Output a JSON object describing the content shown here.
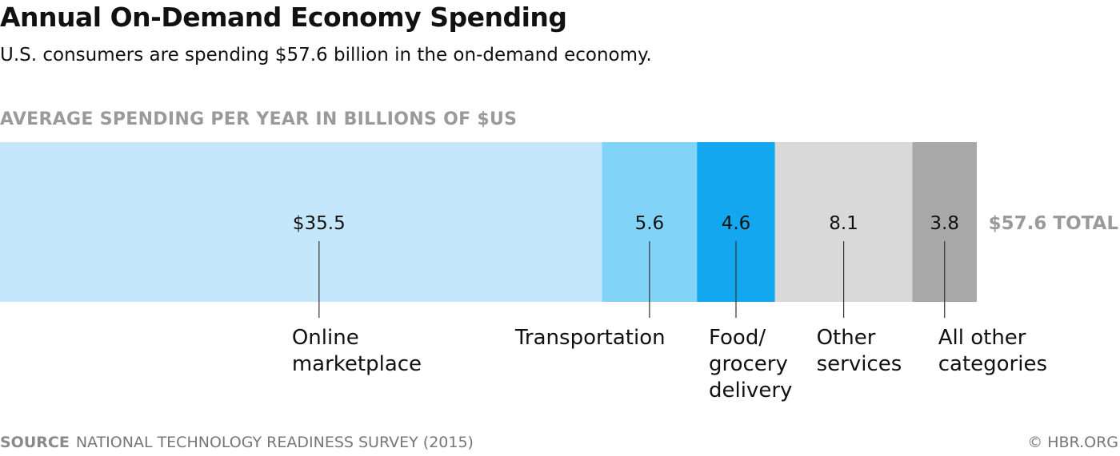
{
  "title": "Annual On-Demand Economy Spending",
  "subtitle": "U.S. consumers are spending $57.6 billion in the on-demand economy.",
  "axis_label": "AVERAGE SPENDING PER YEAR IN BILLIONS OF $US",
  "footer": {
    "source_label": "SOURCE",
    "source_text": "NATIONAL TECHNOLOGY READINESS SURVEY (2015)",
    "credit": "© HBR.ORG"
  },
  "chart_data": {
    "type": "bar",
    "orientation": "horizontal-stacked",
    "title": "Annual On-Demand Economy Spending",
    "subtitle": "U.S. consumers are spending $57.6 billion in the on-demand economy.",
    "ylabel": "AVERAGE SPENDING PER YEAR IN BILLIONS OF $US",
    "total": 57.6,
    "total_label": "$57.6 TOTAL",
    "segments": [
      {
        "category": [
          "Online",
          "marketplace"
        ],
        "value": 35.5,
        "value_label": "$35.5",
        "color": "#c4e7fb",
        "text_color": "#111111"
      },
      {
        "category": [
          "Transportation"
        ],
        "value": 5.6,
        "value_label": "5.6",
        "color": "#82d3f8",
        "text_color": "#111111"
      },
      {
        "category": [
          "Food/",
          "grocery",
          "delivery"
        ],
        "value": 4.6,
        "value_label": "4.6",
        "color": "#12a7ee",
        "text_color": "#111111"
      },
      {
        "category": [
          "Other",
          "services"
        ],
        "value": 8.1,
        "value_label": "8.1",
        "color": "#d9d9d9",
        "text_color": "#111111"
      },
      {
        "category": [
          "All other",
          "categories"
        ],
        "value": 3.8,
        "value_label": "3.8",
        "color": "#a8a8a8",
        "text_color": "#111111"
      }
    ],
    "total_label_color": "#9a9a9a",
    "grid": false,
    "legend": "none"
  }
}
